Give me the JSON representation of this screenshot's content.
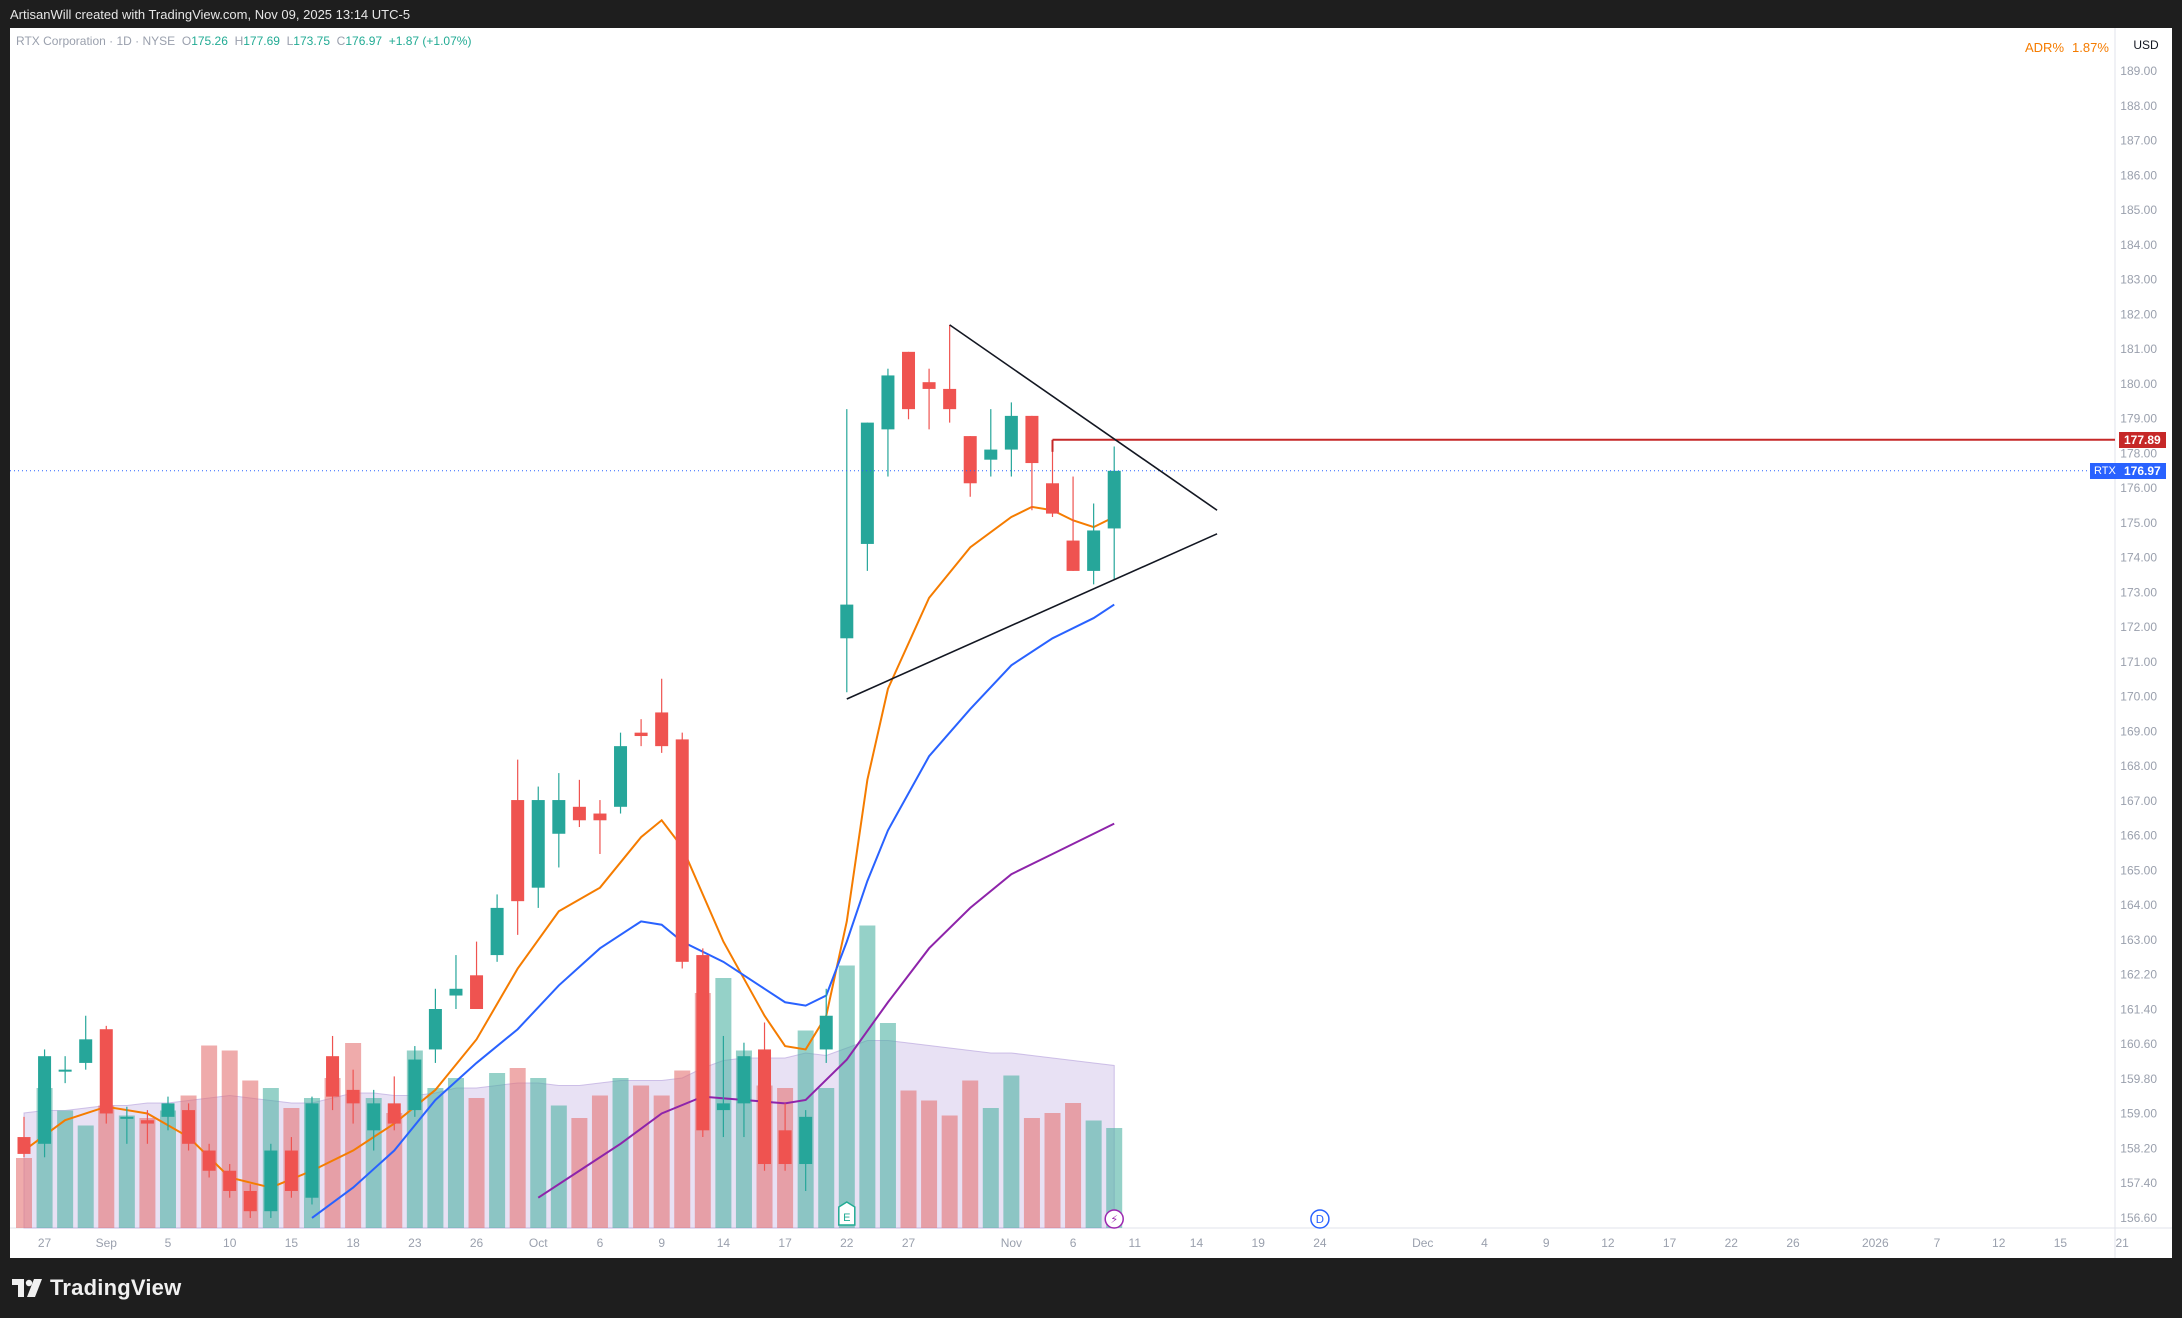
{
  "header": {
    "attribution": "ArtisanWill created with TradingView.com, Nov 09, 2025 13:14 UTC-5"
  },
  "footer": {
    "brand": "TradingView"
  },
  "legend": {
    "symbol_line": "RTX Corporation · 1D · NYSE",
    "open_key": "O",
    "open": "175.26",
    "high_key": "H",
    "high": "177.69",
    "low_key": "L",
    "low": "173.75",
    "close_key": "C",
    "close": "176.97",
    "change": "+1.87 (+1.07%)"
  },
  "indicator": {
    "name": "ADR%",
    "value": "1.87%"
  },
  "currency": "USD",
  "colors": {
    "up": "#26a69a",
    "down": "#ef5350",
    "vol_up": "#4fb3a3",
    "vol_down": "#e57373",
    "ema_fast": "#f57c00",
    "ema_mid": "#2962ff",
    "ema_slow": "#8e24aa",
    "resistance": "#c62828",
    "current_price": "#2962ff"
  },
  "tags": {
    "resistance_price": "177.89",
    "symbol": "RTX",
    "last_price": "176.97"
  },
  "chart_data": {
    "type": "candlestick",
    "title": "RTX Corporation · 1D · NYSE",
    "y_axis_ticks": [
      "189.00",
      "188.00",
      "187.00",
      "186.00",
      "185.00",
      "184.00",
      "183.00",
      "182.00",
      "181.00",
      "180.00",
      "179.00",
      "178.00",
      "176.00",
      "175.00",
      "174.00",
      "173.00",
      "172.00",
      "171.00",
      "170.00",
      "169.00",
      "168.00",
      "167.00",
      "166.00",
      "165.00",
      "164.00",
      "163.00",
      "162.20",
      "161.40",
      "160.60",
      "159.80",
      "159.00",
      "158.20",
      "157.40",
      "156.60"
    ],
    "x_axis_ticks": [
      {
        "label": "27",
        "slot": 1
      },
      {
        "label": "Sep",
        "slot": 4
      },
      {
        "label": "5",
        "slot": 7
      },
      {
        "label": "10",
        "slot": 10
      },
      {
        "label": "15",
        "slot": 13
      },
      {
        "label": "18",
        "slot": 16
      },
      {
        "label": "23",
        "slot": 19
      },
      {
        "label": "26",
        "slot": 22
      },
      {
        "label": "Oct",
        "slot": 25
      },
      {
        "label": "6",
        "slot": 28
      },
      {
        "label": "9",
        "slot": 31
      },
      {
        "label": "14",
        "slot": 34
      },
      {
        "label": "17",
        "slot": 37
      },
      {
        "label": "22",
        "slot": 40
      },
      {
        "label": "27",
        "slot": 43
      },
      {
        "label": "Nov",
        "slot": 48
      },
      {
        "label": "6",
        "slot": 51
      },
      {
        "label": "11",
        "slot": 54
      },
      {
        "label": "14",
        "slot": 57
      },
      {
        "label": "19",
        "slot": 60
      },
      {
        "label": "24",
        "slot": 63
      },
      {
        "label": "Dec",
        "slot": 68
      },
      {
        "label": "4",
        "slot": 71
      },
      {
        "label": "9",
        "slot": 74
      },
      {
        "label": "12",
        "slot": 77
      },
      {
        "label": "17",
        "slot": 80
      },
      {
        "label": "22",
        "slot": 83
      },
      {
        "label": "26",
        "slot": 86
      },
      {
        "label": "2026",
        "slot": 90
      },
      {
        "label": "7",
        "slot": 93
      },
      {
        "label": "12",
        "slot": 96
      },
      {
        "label": "15",
        "slot": 99
      },
      {
        "label": "21",
        "slot": 102
      }
    ],
    "candles": [
      {
        "o": 157.2,
        "h": 157.8,
        "l": 156.6,
        "c": 156.7
      },
      {
        "o": 157.0,
        "h": 159.8,
        "l": 156.6,
        "c": 159.6
      },
      {
        "o": 159.2,
        "h": 159.6,
        "l": 158.8,
        "c": 159.2
      },
      {
        "o": 159.4,
        "h": 160.8,
        "l": 159.2,
        "c": 160.1
      },
      {
        "o": 160.4,
        "h": 160.5,
        "l": 157.6,
        "c": 157.9
      },
      {
        "o": 157.8,
        "h": 158.1,
        "l": 157.0,
        "c": 157.8
      },
      {
        "o": 157.7,
        "h": 158.0,
        "l": 157.0,
        "c": 157.6
      },
      {
        "o": 157.8,
        "h": 158.4,
        "l": 157.4,
        "c": 158.2
      },
      {
        "o": 158.0,
        "h": 158.2,
        "l": 156.8,
        "c": 157.0
      },
      {
        "o": 156.8,
        "h": 157.0,
        "l": 156.0,
        "c": 156.2
      },
      {
        "o": 156.2,
        "h": 156.4,
        "l": 155.4,
        "c": 155.6
      },
      {
        "o": 155.6,
        "h": 155.8,
        "l": 154.8,
        "c": 155.0
      },
      {
        "o": 155.0,
        "h": 157.0,
        "l": 154.8,
        "c": 156.8
      },
      {
        "o": 156.8,
        "h": 157.2,
        "l": 155.4,
        "c": 155.6
      },
      {
        "o": 155.4,
        "h": 158.4,
        "l": 155.2,
        "c": 158.2
      },
      {
        "o": 159.6,
        "h": 160.2,
        "l": 158.0,
        "c": 158.4
      },
      {
        "o": 158.6,
        "h": 159.2,
        "l": 157.6,
        "c": 158.2
      },
      {
        "o": 157.4,
        "h": 158.6,
        "l": 156.8,
        "c": 158.2
      },
      {
        "o": 158.2,
        "h": 159.0,
        "l": 157.4,
        "c": 157.6
      },
      {
        "o": 158.0,
        "h": 159.9,
        "l": 157.8,
        "c": 159.5
      },
      {
        "o": 159.8,
        "h": 161.6,
        "l": 159.4,
        "c": 161.0
      },
      {
        "o": 161.4,
        "h": 162.6,
        "l": 161.0,
        "c": 161.6
      },
      {
        "o": 162.0,
        "h": 163.0,
        "l": 161.2,
        "c": 161.0
      },
      {
        "o": 162.6,
        "h": 164.4,
        "l": 162.4,
        "c": 164.0
      },
      {
        "o": 167.2,
        "h": 168.4,
        "l": 163.2,
        "c": 164.2
      },
      {
        "o": 164.6,
        "h": 167.6,
        "l": 164.0,
        "c": 167.2
      },
      {
        "o": 166.2,
        "h": 168.0,
        "l": 165.2,
        "c": 167.2
      },
      {
        "o": 167.0,
        "h": 167.8,
        "l": 166.4,
        "c": 166.6
      },
      {
        "o": 166.8,
        "h": 167.2,
        "l": 165.6,
        "c": 166.6
      },
      {
        "o": 167.0,
        "h": 169.2,
        "l": 166.8,
        "c": 168.8
      },
      {
        "o": 169.2,
        "h": 169.6,
        "l": 168.8,
        "c": 169.1
      },
      {
        "o": 169.8,
        "h": 170.8,
        "l": 168.6,
        "c": 168.8
      },
      {
        "o": 169.0,
        "h": 169.2,
        "l": 162.2,
        "c": 162.4
      },
      {
        "o": 162.6,
        "h": 162.8,
        "l": 157.2,
        "c": 157.4
      },
      {
        "o": 158.0,
        "h": 160.2,
        "l": 157.2,
        "c": 158.2
      },
      {
        "o": 158.2,
        "h": 160.0,
        "l": 157.2,
        "c": 159.6
      },
      {
        "o": 159.8,
        "h": 160.6,
        "l": 156.2,
        "c": 156.4
      },
      {
        "o": 157.4,
        "h": 158.2,
        "l": 156.2,
        "c": 156.4
      },
      {
        "o": 156.4,
        "h": 158.0,
        "l": 155.6,
        "c": 157.8
      },
      {
        "o": 159.8,
        "h": 161.6,
        "l": 159.4,
        "c": 160.8
      },
      {
        "o": 172.0,
        "h": 178.8,
        "l": 170.4,
        "c": 173.0
      },
      {
        "o": 174.8,
        "h": 178.4,
        "l": 174.0,
        "c": 178.4
      },
      {
        "o": 178.2,
        "h": 180.0,
        "l": 176.8,
        "c": 179.8
      },
      {
        "o": 180.5,
        "h": 180.5,
        "l": 178.5,
        "c": 178.8
      },
      {
        "o": 179.6,
        "h": 180.0,
        "l": 178.2,
        "c": 179.4
      },
      {
        "o": 179.4,
        "h": 181.3,
        "l": 178.4,
        "c": 178.8
      },
      {
        "o": 178.0,
        "h": 178.0,
        "l": 176.2,
        "c": 176.6
      },
      {
        "o": 177.3,
        "h": 178.8,
        "l": 176.8,
        "c": 177.6
      },
      {
        "o": 177.6,
        "h": 179.0,
        "l": 176.8,
        "c": 178.6
      },
      {
        "o": 178.6,
        "h": 178.6,
        "l": 175.8,
        "c": 177.2
      },
      {
        "o": 176.6,
        "h": 177.8,
        "l": 175.6,
        "c": 175.7
      },
      {
        "o": 174.9,
        "h": 176.8,
        "l": 174.0,
        "c": 174.0
      },
      {
        "o": 174.0,
        "h": 176.0,
        "l": 173.6,
        "c": 175.2
      },
      {
        "o": 175.26,
        "h": 177.69,
        "l": 173.75,
        "c": 176.97
      }
    ],
    "volume_relative": [
      0.28,
      0.56,
      0.47,
      0.41,
      0.49,
      0.45,
      0.44,
      0.47,
      0.53,
      0.73,
      0.71,
      0.59,
      0.56,
      0.48,
      0.52,
      0.6,
      0.74,
      0.52,
      0.46,
      0.71,
      0.56,
      0.6,
      0.52,
      0.62,
      0.64,
      0.6,
      0.49,
      0.44,
      0.53,
      0.6,
      0.57,
      0.53,
      0.63,
      0.94,
      1.0,
      0.71,
      0.57,
      0.56,
      0.79,
      0.56,
      1.05,
      1.21,
      0.82,
      0.55,
      0.51,
      0.45,
      0.59,
      0.48,
      0.61,
      0.44,
      0.46,
      0.5,
      0.43,
      0.4
    ],
    "volume_avg_relative": [
      0.46,
      0.47,
      0.47,
      0.48,
      0.49,
      0.49,
      0.5,
      0.5,
      0.51,
      0.52,
      0.53,
      0.52,
      0.51,
      0.5,
      0.5,
      0.52,
      0.54,
      0.54,
      0.53,
      0.53,
      0.54,
      0.56,
      0.56,
      0.57,
      0.58,
      0.58,
      0.57,
      0.57,
      0.58,
      0.59,
      0.59,
      0.59,
      0.6,
      0.64,
      0.67,
      0.68,
      0.68,
      0.68,
      0.7,
      0.69,
      0.72,
      0.75,
      0.75,
      0.74,
      0.73,
      0.72,
      0.71,
      0.7,
      0.7,
      0.69,
      0.68,
      0.67,
      0.66,
      0.65
    ],
    "ema_fast": [
      {
        "i": 0,
        "v": 156.8
      },
      {
        "i": 2,
        "v": 157.7
      },
      {
        "i": 4,
        "v": 158.1
      },
      {
        "i": 6,
        "v": 157.9
      },
      {
        "i": 8,
        "v": 157.2
      },
      {
        "i": 10,
        "v": 156.0
      },
      {
        "i": 12,
        "v": 155.7
      },
      {
        "i": 14,
        "v": 156.2
      },
      {
        "i": 16,
        "v": 156.8
      },
      {
        "i": 18,
        "v": 157.6
      },
      {
        "i": 20,
        "v": 158.6
      },
      {
        "i": 22,
        "v": 160.1
      },
      {
        "i": 24,
        "v": 162.2
      },
      {
        "i": 26,
        "v": 163.9
      },
      {
        "i": 28,
        "v": 164.6
      },
      {
        "i": 30,
        "v": 166.1
      },
      {
        "i": 31,
        "v": 166.6
      },
      {
        "i": 32,
        "v": 165.8
      },
      {
        "i": 34,
        "v": 163.0
      },
      {
        "i": 36,
        "v": 160.8
      },
      {
        "i": 37,
        "v": 159.9
      },
      {
        "i": 38,
        "v": 159.8
      },
      {
        "i": 39,
        "v": 160.8
      },
      {
        "i": 40,
        "v": 163.6
      },
      {
        "i": 41,
        "v": 167.8
      },
      {
        "i": 42,
        "v": 170.5
      },
      {
        "i": 44,
        "v": 173.2
      },
      {
        "i": 46,
        "v": 174.7
      },
      {
        "i": 48,
        "v": 175.6
      },
      {
        "i": 49,
        "v": 175.9
      },
      {
        "i": 50,
        "v": 175.8
      },
      {
        "i": 51,
        "v": 175.5
      },
      {
        "i": 52,
        "v": 175.3
      },
      {
        "i": 53,
        "v": 175.6
      }
    ],
    "ema_mid": [
      {
        "i": 14,
        "v": 154.8
      },
      {
        "i": 16,
        "v": 155.7
      },
      {
        "i": 18,
        "v": 156.8
      },
      {
        "i": 20,
        "v": 158.3
      },
      {
        "i": 22,
        "v": 159.4
      },
      {
        "i": 24,
        "v": 160.4
      },
      {
        "i": 26,
        "v": 161.7
      },
      {
        "i": 28,
        "v": 162.8
      },
      {
        "i": 30,
        "v": 163.6
      },
      {
        "i": 31,
        "v": 163.5
      },
      {
        "i": 32,
        "v": 163.0
      },
      {
        "i": 34,
        "v": 162.4
      },
      {
        "i": 36,
        "v": 161.6
      },
      {
        "i": 37,
        "v": 161.2
      },
      {
        "i": 38,
        "v": 161.1
      },
      {
        "i": 39,
        "v": 161.4
      },
      {
        "i": 40,
        "v": 163.0
      },
      {
        "i": 41,
        "v": 164.8
      },
      {
        "i": 42,
        "v": 166.3
      },
      {
        "i": 44,
        "v": 168.5
      },
      {
        "i": 46,
        "v": 169.9
      },
      {
        "i": 48,
        "v": 171.2
      },
      {
        "i": 50,
        "v": 172.0
      },
      {
        "i": 52,
        "v": 172.6
      },
      {
        "i": 53,
        "v": 173.0
      }
    ],
    "ema_slow": [
      {
        "i": 25,
        "v": 155.4
      },
      {
        "i": 27,
        "v": 156.2
      },
      {
        "i": 29,
        "v": 157.0
      },
      {
        "i": 31,
        "v": 157.9
      },
      {
        "i": 33,
        "v": 158.4
      },
      {
        "i": 35,
        "v": 158.3
      },
      {
        "i": 37,
        "v": 158.2
      },
      {
        "i": 38,
        "v": 158.3
      },
      {
        "i": 40,
        "v": 159.5
      },
      {
        "i": 42,
        "v": 161.2
      },
      {
        "i": 44,
        "v": 162.8
      },
      {
        "i": 46,
        "v": 164.0
      },
      {
        "i": 48,
        "v": 165.0
      },
      {
        "i": 50,
        "v": 165.6
      },
      {
        "i": 53,
        "v": 166.5
      }
    ],
    "trendlines": [
      {
        "name": "upper",
        "from": {
          "i": 45,
          "v": 181.3
        },
        "to": {
          "i": 58,
          "v": 175.8
        }
      },
      {
        "name": "lower",
        "from": {
          "i": 40,
          "v": 170.2
        },
        "to": {
          "i": 58,
          "v": 175.1
        }
      }
    ],
    "resistance": {
      "from_index": 50,
      "value": 177.89
    },
    "last_price": 176.97,
    "event_markers": [
      {
        "type": "earnings",
        "letter": "E",
        "slot": 40
      },
      {
        "type": "dividend",
        "letter": "D",
        "slot": 63
      },
      {
        "type": "split",
        "letter": "⚡",
        "slot": 53
      }
    ]
  }
}
